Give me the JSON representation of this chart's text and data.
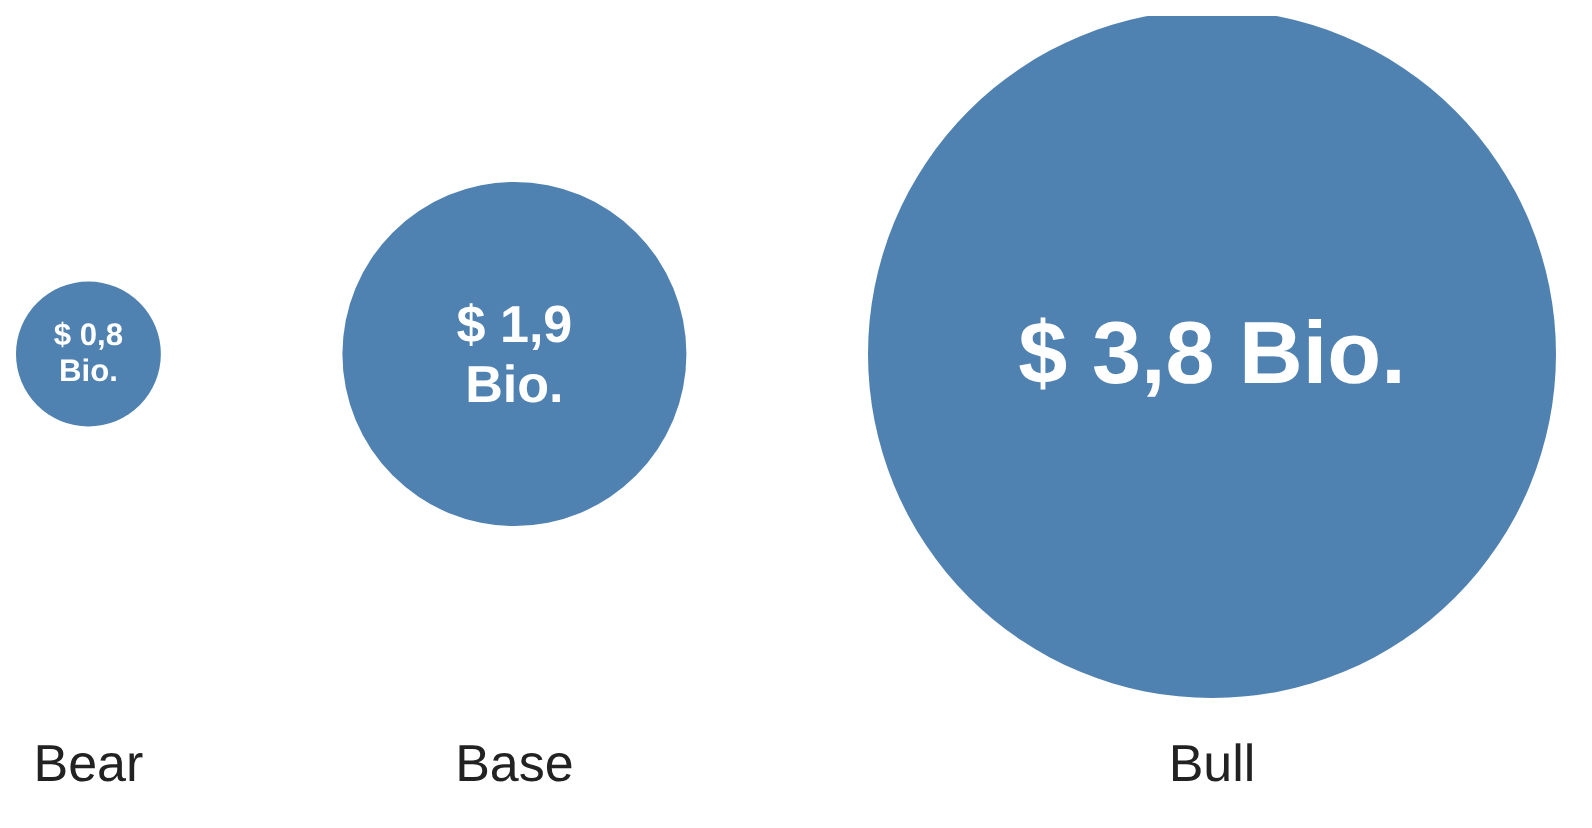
{
  "chart_data": {
    "type": "other",
    "categories": [
      "Bear",
      "Base",
      "Bull"
    ],
    "values": [
      0.8,
      1.9,
      3.8
    ],
    "value_labels": [
      "$ 0,8 Bio.",
      "$ 1,9 Bio.",
      "$ 3,8 Bio."
    ],
    "color": "#4f81b1"
  }
}
